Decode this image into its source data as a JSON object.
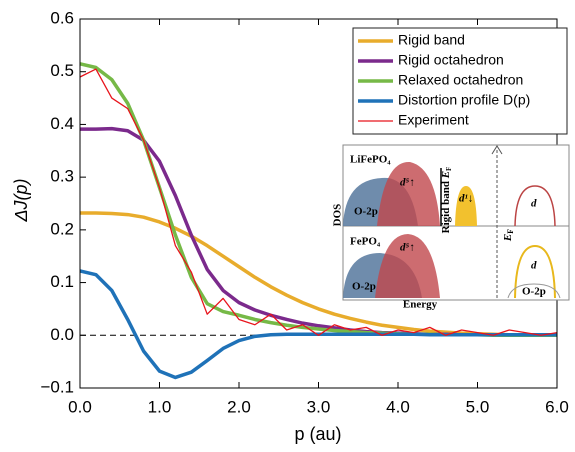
{
  "chart_data": {
    "type": "line",
    "x_label": "p (au)",
    "y_label": "ΔJ(p)",
    "xlim": [
      0,
      6
    ],
    "ylim": [
      -0.1,
      0.6
    ],
    "xticks": [
      {
        "value": 0,
        "label": "0.0"
      },
      {
        "value": 1,
        "label": "1.0"
      },
      {
        "value": 2,
        "label": "2.0"
      },
      {
        "value": 3,
        "label": "3.0"
      },
      {
        "value": 4,
        "label": "4.0"
      },
      {
        "value": 5,
        "label": "5.0"
      },
      {
        "value": 6,
        "label": "6.0"
      }
    ],
    "yticks": [
      {
        "value": -0.1,
        "label": "−0.1"
      },
      {
        "value": 0,
        "label": "0.0"
      },
      0.1,
      0.2,
      0.3,
      0.4,
      0.5,
      0.6
    ],
    "reference_line": 0,
    "legend": "upper right",
    "x": [
      0,
      0.2,
      0.4,
      0.6,
      0.8,
      1.0,
      1.2,
      1.4,
      1.6,
      1.8,
      2.0,
      2.2,
      2.4,
      2.6,
      2.8,
      3.0,
      3.2,
      3.4,
      3.6,
      3.8,
      4.0,
      4.2,
      4.4,
      4.6,
      4.8,
      5.0,
      5.2,
      5.4,
      5.6,
      5.8,
      6.0
    ],
    "series": [
      {
        "name": "Rigid band",
        "color": "#e8ac2c",
        "width": 3.5,
        "values": [
          0.232,
          0.232,
          0.231,
          0.229,
          0.224,
          0.215,
          0.203,
          0.188,
          0.17,
          0.15,
          0.13,
          0.11,
          0.092,
          0.076,
          0.062,
          0.05,
          0.04,
          0.032,
          0.025,
          0.019,
          0.015,
          0.011,
          0.008,
          0.006,
          0.004,
          0.003,
          0.002,
          0.001,
          0.001,
          0,
          0
        ]
      },
      {
        "name": "Rigid octahedron",
        "color": "#7b2a8c",
        "width": 3.5,
        "values": [
          0.391,
          0.391,
          0.392,
          0.388,
          0.37,
          0.33,
          0.265,
          0.19,
          0.125,
          0.085,
          0.062,
          0.048,
          0.038,
          0.03,
          0.023,
          0.018,
          0.014,
          0.01,
          0.007,
          0.005,
          0.004,
          0.003,
          0.002,
          0.002,
          0.001,
          0.001,
          0.001,
          0,
          0,
          0,
          0
        ]
      },
      {
        "name": "Relaxed octahedron",
        "color": "#76b947",
        "width": 3.5,
        "values": [
          0.515,
          0.508,
          0.485,
          0.44,
          0.37,
          0.28,
          0.19,
          0.11,
          0.06,
          0.045,
          0.038,
          0.03,
          0.024,
          0.019,
          0.015,
          0.012,
          0.009,
          0.007,
          0.005,
          0.004,
          0.003,
          0.002,
          0.002,
          0.001,
          0.001,
          0.001,
          0,
          0,
          0,
          0,
          0
        ]
      },
      {
        "name": "Distortion profile D(p)",
        "color": "#1f72b8",
        "width": 3.5,
        "values": [
          0.122,
          0.115,
          0.085,
          0.03,
          -0.03,
          -0.068,
          -0.08,
          -0.07,
          -0.048,
          -0.025,
          -0.01,
          -0.002,
          0.001,
          0.002,
          0.002,
          0.002,
          0.002,
          0.002,
          0.002,
          0.002,
          0.002,
          0.002,
          0.001,
          0.001,
          0.001,
          0.001,
          0.001,
          0.001,
          0.001,
          0.001,
          0.001
        ]
      },
      {
        "name": "Experiment",
        "color": "#e8141c",
        "width": 1.3,
        "values": [
          0.49,
          0.505,
          0.45,
          0.43,
          0.37,
          0.28,
          0.17,
          0.12,
          0.04,
          0.07,
          0.03,
          0.02,
          0.04,
          0.01,
          0.02,
          0.0,
          0.02,
          0.01,
          0.015,
          0.0,
          0.01,
          0.005,
          0.015,
          0.0,
          0.01,
          0.005,
          0.0,
          0.01,
          0.005,
          0.0,
          0.005
        ]
      }
    ]
  },
  "inset": {
    "top_compound": "LiFePO₄",
    "bottom_compound": "FePO₄",
    "dos": "DOS",
    "energy": "Energy",
    "o2p": "O-2p",
    "d_up": "d⁵↑",
    "d_down": "d¹↓",
    "d": "d",
    "rigid_band": "Rigid band",
    "ef_symbol": "E",
    "ef_sub": "F"
  }
}
